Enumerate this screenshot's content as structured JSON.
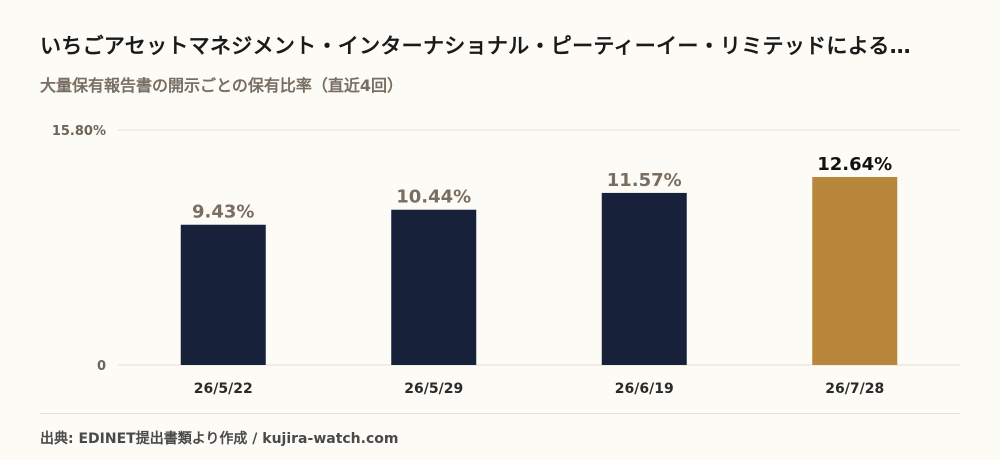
{
  "title": "いちごアセットマネジメント・インターナショナル・ピーティーイー・リミテッドによる…",
  "subtitle": "大量保有報告書の開示ごとの保有比率（直近4回）",
  "source": "出典: EDINET提出書類より作成 / kujira-watch.com",
  "colors": {
    "bar_default": "#17213a",
    "bar_highlight": "#b8873b",
    "label_default": "#7a6e62",
    "label_highlight": "#111111",
    "grid": "#e4e0d2"
  },
  "chart_data": {
    "type": "bar",
    "categories": [
      "26/5/22",
      "26/5/29",
      "26/6/19",
      "26/7/28"
    ],
    "values": [
      9.43,
      10.44,
      11.57,
      12.64
    ],
    "value_labels": [
      "9.43%",
      "10.44%",
      "11.57%",
      "12.64%"
    ],
    "highlight_index": 3,
    "ylim": [
      0,
      15.8
    ],
    "yticks": [
      0,
      15.8
    ],
    "ytick_labels": [
      "0",
      "15.80%"
    ],
    "grid": true,
    "xlabel": "",
    "ylabel": ""
  }
}
